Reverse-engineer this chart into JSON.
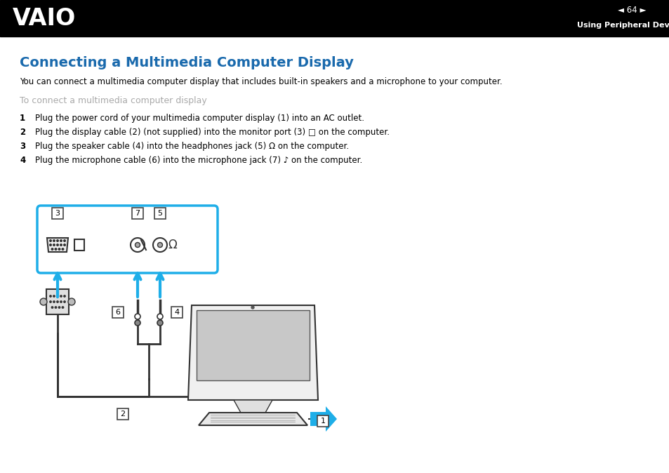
{
  "header_bg": "#000000",
  "header_text_color": "#ffffff",
  "page_number": "◄ 64 ►",
  "header_right_text": "Using Peripheral Devices",
  "title": "Connecting a Multimedia Computer Display",
  "title_color": "#1a6aad",
  "body_color": "#000000",
  "gray_subheading": "To connect a multimedia computer display",
  "gray_color": "#aaaaaa",
  "para_intro": "You can connect a multimedia computer display that includes built-in speakers and a microphone to your computer.",
  "step1": "Plug the power cord of your multimedia computer display (1) into an AC outlet.",
  "step2": "Plug the display cable (2) (not supplied) into the monitor port (3) □ on the computer.",
  "step3": "Plug the speaker cable (4) into the headphones jack (5) Ω on the computer.",
  "step4": "Plug the microphone cable (6) into the microphone jack (7) ♪ on the computer.",
  "cyan_color": "#1eaee8",
  "bg_color": "#ffffff",
  "figw": 9.54,
  "figh": 6.74,
  "dpi": 100
}
